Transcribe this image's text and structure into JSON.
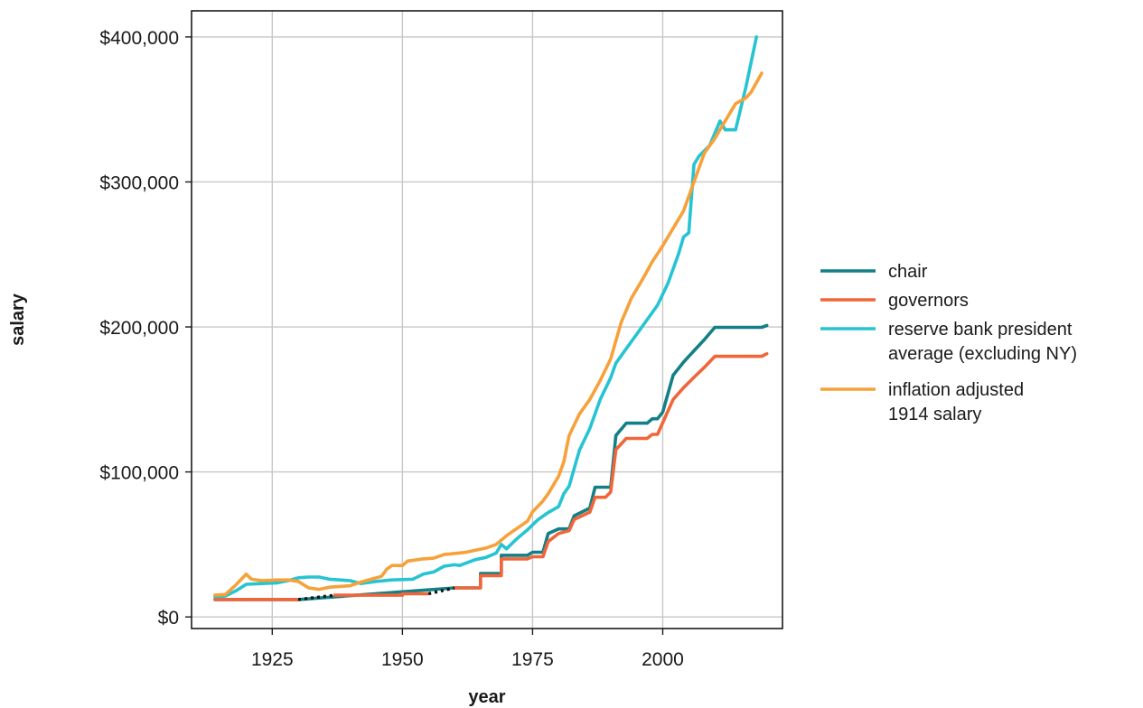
{
  "chart_data": {
    "type": "line",
    "title": "",
    "xlabel": "year",
    "ylabel": "salary",
    "xlim": [
      1909.5,
      2023
    ],
    "ylim": [
      -8000,
      418000
    ],
    "x_ticks": [
      1925,
      1950,
      1975,
      2000
    ],
    "x_tick_labels": [
      "1925",
      "1950",
      "1975",
      "2000"
    ],
    "y_ticks": [
      0,
      100000,
      200000,
      300000,
      400000
    ],
    "y_tick_labels": [
      "$0",
      "$100,000",
      "$200,000",
      "$300,000",
      "$400,000"
    ],
    "grid": true,
    "legend_position": "right",
    "series": [
      {
        "name": "chair",
        "color": "#137f86",
        "points": [
          [
            1914,
            12000
          ],
          [
            1930,
            12000
          ],
          [
            1960,
            20000
          ],
          [
            1965,
            20000
          ],
          [
            1965,
            30000
          ],
          [
            1969,
            30000
          ],
          [
            1969,
            42500
          ],
          [
            1974,
            42500
          ],
          [
            1975,
            44600
          ],
          [
            1977,
            44600
          ],
          [
            1978,
            57500
          ],
          [
            1980,
            60700
          ],
          [
            1982,
            60700
          ],
          [
            1983,
            69800
          ],
          [
            1986,
            75100
          ],
          [
            1987,
            89500
          ],
          [
            1990,
            89500
          ],
          [
            1991,
            125100
          ],
          [
            1993,
            133600
          ],
          [
            1997,
            133600
          ],
          [
            1998,
            136700
          ],
          [
            1999,
            136700
          ],
          [
            2000,
            141300
          ],
          [
            2002,
            166700
          ],
          [
            2004,
            175700
          ],
          [
            2006,
            183500
          ],
          [
            2008,
            191300
          ],
          [
            2010,
            199700
          ],
          [
            2019,
            199700
          ],
          [
            2020,
            201000
          ]
        ]
      },
      {
        "name": "governors",
        "color": "#f0663a",
        "points": [
          [
            1914,
            12000
          ],
          [
            1930,
            12000
          ],
          [
            1937,
            15000
          ],
          [
            1950,
            15000
          ],
          [
            1950,
            16000
          ],
          [
            1955,
            16000
          ],
          [
            1960,
            20000
          ],
          [
            1965,
            20000
          ],
          [
            1965,
            28500
          ],
          [
            1969,
            28500
          ],
          [
            1969,
            40000
          ],
          [
            1974,
            40000
          ],
          [
            1975,
            41500
          ],
          [
            1977,
            41500
          ],
          [
            1978,
            52000
          ],
          [
            1980,
            57500
          ],
          [
            1982,
            59500
          ],
          [
            1983,
            67200
          ],
          [
            1986,
            72300
          ],
          [
            1987,
            82500
          ],
          [
            1989,
            82500
          ],
          [
            1990,
            86200
          ],
          [
            1991,
            115300
          ],
          [
            1993,
            123100
          ],
          [
            1997,
            123100
          ],
          [
            1998,
            125900
          ],
          [
            1999,
            125900
          ],
          [
            2000,
            134000
          ],
          [
            2002,
            150000
          ],
          [
            2004,
            158100
          ],
          [
            2006,
            165200
          ],
          [
            2008,
            172200
          ],
          [
            2010,
            179700
          ],
          [
            2019,
            179700
          ],
          [
            2020,
            181500
          ]
        ]
      },
      {
        "name": "reserve bank president average (excluding NY)",
        "color": "#26c4d3",
        "points": [
          [
            1914,
            14000
          ],
          [
            1916,
            14500
          ],
          [
            1918,
            18000
          ],
          [
            1920,
            22500
          ],
          [
            1923,
            23000
          ],
          [
            1926,
            23500
          ],
          [
            1928,
            25000
          ],
          [
            1930,
            27000
          ],
          [
            1932,
            27500
          ],
          [
            1934,
            27500
          ],
          [
            1936,
            26000
          ],
          [
            1940,
            25000
          ],
          [
            1942,
            23000
          ],
          [
            1945,
            24500
          ],
          [
            1948,
            25500
          ],
          [
            1952,
            26000
          ],
          [
            1954,
            29500
          ],
          [
            1956,
            31000
          ],
          [
            1958,
            35000
          ],
          [
            1960,
            36000
          ],
          [
            1961,
            35500
          ],
          [
            1964,
            39500
          ],
          [
            1966,
            41000
          ],
          [
            1968,
            44000
          ],
          [
            1969,
            50000
          ],
          [
            1970,
            47000
          ],
          [
            1972,
            54000
          ],
          [
            1974,
            60000
          ],
          [
            1976,
            67000
          ],
          [
            1978,
            72000
          ],
          [
            1980,
            76000
          ],
          [
            1981,
            85000
          ],
          [
            1982,
            90000
          ],
          [
            1984,
            115000
          ],
          [
            1986,
            130000
          ],
          [
            1988,
            150000
          ],
          [
            1990,
            165000
          ],
          [
            1991,
            175000
          ],
          [
            1992,
            180000
          ],
          [
            1993,
            185000
          ],
          [
            1995,
            195000
          ],
          [
            1997,
            205000
          ],
          [
            1999,
            215000
          ],
          [
            2001,
            230000
          ],
          [
            2003,
            250000
          ],
          [
            2004,
            262000
          ],
          [
            2005,
            265000
          ],
          [
            2006,
            312000
          ],
          [
            2007,
            318000
          ],
          [
            2009,
            325000
          ],
          [
            2011,
            342000
          ],
          [
            2012,
            336000
          ],
          [
            2014,
            336000
          ],
          [
            2016,
            366000
          ],
          [
            2018,
            400000
          ]
        ]
      },
      {
        "name": "inflation adjusted 1914 salary",
        "color": "#f6a13a",
        "points": [
          [
            1914,
            15000
          ],
          [
            1916,
            15500
          ],
          [
            1918,
            22000
          ],
          [
            1920,
            29500
          ],
          [
            1921,
            26000
          ],
          [
            1923,
            25000
          ],
          [
            1926,
            25500
          ],
          [
            1928,
            25500
          ],
          [
            1930,
            24500
          ],
          [
            1932,
            20000
          ],
          [
            1934,
            19000
          ],
          [
            1936,
            20500
          ],
          [
            1938,
            21000
          ],
          [
            1940,
            21500
          ],
          [
            1942,
            24000
          ],
          [
            1944,
            26000
          ],
          [
            1946,
            28000
          ],
          [
            1947,
            33000
          ],
          [
            1948,
            35500
          ],
          [
            1950,
            35500
          ],
          [
            1951,
            38500
          ],
          [
            1954,
            40000
          ],
          [
            1956,
            40500
          ],
          [
            1958,
            43000
          ],
          [
            1962,
            44500
          ],
          [
            1966,
            47500
          ],
          [
            1968,
            50000
          ],
          [
            1970,
            56000
          ],
          [
            1972,
            61000
          ],
          [
            1974,
            66000
          ],
          [
            1975,
            72500
          ],
          [
            1977,
            80000
          ],
          [
            1978,
            85000
          ],
          [
            1980,
            97000
          ],
          [
            1981,
            107000
          ],
          [
            1982,
            125000
          ],
          [
            1984,
            140000
          ],
          [
            1986,
            150000
          ],
          [
            1988,
            163000
          ],
          [
            1990,
            178000
          ],
          [
            1992,
            203000
          ],
          [
            1994,
            220000
          ],
          [
            1996,
            232000
          ],
          [
            1998,
            245000
          ],
          [
            2000,
            256000
          ],
          [
            2002,
            268000
          ],
          [
            2004,
            280000
          ],
          [
            2006,
            300000
          ],
          [
            2008,
            320000
          ],
          [
            2010,
            330000
          ],
          [
            2012,
            342000
          ],
          [
            2014,
            354000
          ],
          [
            2016,
            358000
          ],
          [
            2017,
            362000
          ],
          [
            2019,
            375000
          ]
        ]
      }
    ],
    "gaps": [
      {
        "series": "governors",
        "points": [
          [
            1930,
            12000
          ],
          [
            1937,
            15000
          ]
        ]
      },
      {
        "series": "governors",
        "points": [
          [
            1955,
            16000
          ],
          [
            1960,
            20000
          ]
        ]
      }
    ],
    "legend": [
      {
        "label_lines": [
          "chair"
        ],
        "color": "#137f86"
      },
      {
        "label_lines": [
          "governors"
        ],
        "color": "#f0663a"
      },
      {
        "label_lines": [
          "reserve bank president",
          "average (excluding NY)"
        ],
        "color": "#26c4d3"
      },
      {
        "label_lines": [
          "inflation adjusted",
          "1914 salary"
        ],
        "color": "#f6a13a"
      }
    ]
  }
}
